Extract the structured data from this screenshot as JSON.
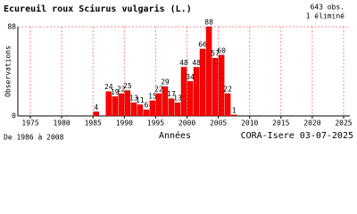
{
  "chart_data": {
    "type": "bar",
    "title": "Ecureuil roux  Sciurus vulgaris (L.)",
    "obs": "643 obs.",
    "removed": "1 éliminé",
    "y_label": "Observations",
    "x_label": "Années",
    "period": "De 1986 à 2008",
    "source": "CORA-Isere 03-07-2025",
    "x": [
      1986,
      1988,
      1989,
      1990,
      1991,
      1992,
      1993,
      1994,
      1995,
      1996,
      1997,
      1998,
      1999,
      2000,
      2001,
      2002,
      2003,
      2004,
      2005,
      2006,
      2007,
      2008
    ],
    "values": [
      4,
      24,
      19,
      22,
      25,
      13,
      11,
      6,
      15,
      22,
      29,
      17,
      13,
      48,
      34,
      48,
      66,
      88,
      57,
      60,
      22,
      1
    ],
    "color": "#ff0000",
    "xlim": [
      1973,
      2026
    ],
    "xticks": [
      1975,
      1980,
      1985,
      1990,
      1995,
      2000,
      2005,
      2010,
      2015,
      2020,
      2025
    ],
    "ylim": [
      0,
      88
    ],
    "yticks": [
      0,
      88
    ],
    "grid": true
  }
}
